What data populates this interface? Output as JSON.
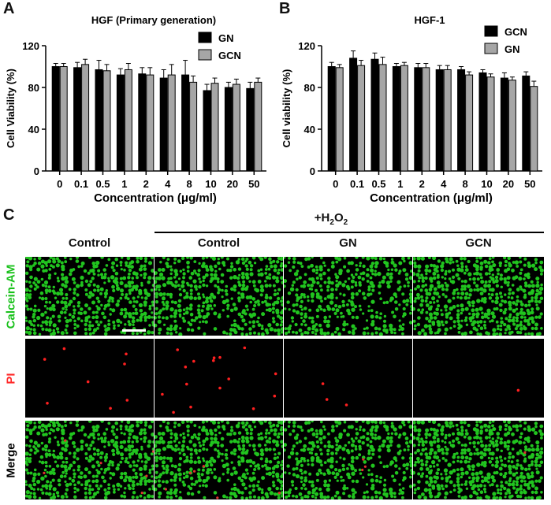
{
  "panels": {
    "a_letter": "A",
    "b_letter": "B",
    "c_letter": "C"
  },
  "chart_data": [
    {
      "type": "bar",
      "title": "HGF (Primary generation)",
      "xlabel": "Concentration (μg/ml)",
      "ylabel": "Cell Viability (%)",
      "ylim": [
        0,
        120
      ],
      "yticks": [
        0,
        40,
        80,
        120
      ],
      "categories": [
        "0",
        "0.1",
        "0.5",
        "1",
        "2",
        "4",
        "8",
        "10",
        "20",
        "50"
      ],
      "legend_position": "top-right",
      "series": [
        {
          "name": "GN",
          "color": "#000000",
          "values": [
            100,
            99,
            97,
            92,
            93,
            89,
            92,
            77,
            80,
            79
          ],
          "errors": [
            3,
            5,
            9,
            6,
            6,
            8,
            14,
            6,
            5,
            6
          ]
        },
        {
          "name": "GCN",
          "color": "#a6a6a6",
          "values": [
            100,
            102,
            96,
            97,
            92,
            92,
            85,
            84,
            83,
            85
          ],
          "errors": [
            3,
            5,
            6,
            6,
            7,
            10,
            6,
            5,
            5,
            4
          ]
        }
      ]
    },
    {
      "type": "bar",
      "title": "HGF-1",
      "xlabel": "Concentration (μg/ml)",
      "ylabel": "Cell viability (%)",
      "ylim": [
        0,
        120
      ],
      "yticks": [
        0,
        40,
        80,
        120
      ],
      "categories": [
        "0",
        "0.1",
        "0.5",
        "1",
        "2",
        "4",
        "8",
        "10",
        "20",
        "50"
      ],
      "legend_position": "top-right",
      "series": [
        {
          "name": "GCN",
          "color": "#000000",
          "values": [
            100,
            108,
            107,
            100,
            99,
            97,
            97,
            94,
            89,
            91
          ],
          "errors": [
            4,
            7,
            6,
            3,
            4,
            4,
            3,
            3,
            5,
            4
          ]
        },
        {
          "name": "GN",
          "color": "#a6a6a6",
          "values": [
            99,
            101,
            102,
            101,
            99,
            97,
            92,
            90,
            87,
            81
          ],
          "errors": [
            3,
            5,
            7,
            3,
            4,
            4,
            3,
            3,
            3,
            5
          ]
        }
      ]
    }
  ],
  "panel_c": {
    "bracket_label_prefix": "+H",
    "bracket_label_sub": "2",
    "bracket_label_tail": "O",
    "bracket_label_sub2": "2",
    "columns": [
      "Control",
      "Control",
      "GN",
      "GCN"
    ],
    "rows": [
      {
        "label": "Calcein-AM",
        "color": "#19c11b"
      },
      {
        "label": "PI",
        "color": "#ff2a2a"
      },
      {
        "label": "Merge",
        "color": "#000000"
      }
    ],
    "pi_dot_counts": [
      8,
      16,
      3,
      1
    ],
    "green_density": [
      0.62,
      0.64,
      0.55,
      0.7
    ]
  }
}
